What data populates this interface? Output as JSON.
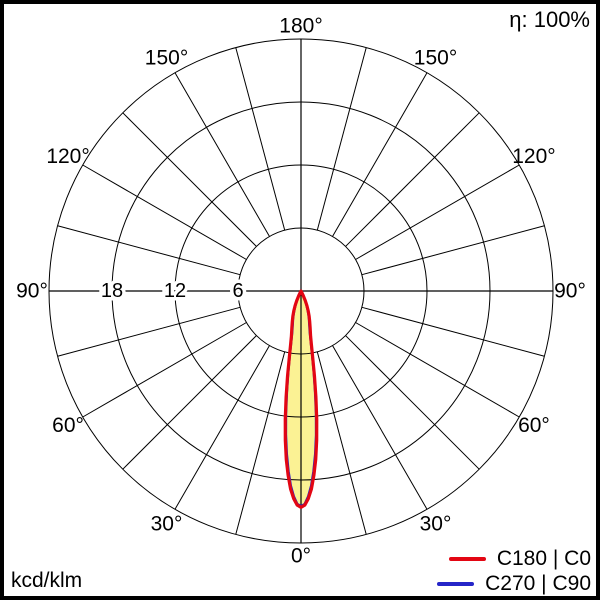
{
  "header": {
    "efficiency": "η: 100%"
  },
  "footer": {
    "unit_label": "kcd/klm"
  },
  "legend": {
    "items": [
      {
        "label": "C180 | C0",
        "color": "#e30613"
      },
      {
        "label": "C270 | C90",
        "color": "#2525c8"
      }
    ]
  },
  "chart_data": {
    "type": "polar",
    "subtype": "luminous-intensity-distribution",
    "units": "kcd/klm",
    "efficiency": "η: 100%",
    "grid": {
      "ring_values": [
        6,
        12,
        18,
        24
      ],
      "radial_tick_labels": [
        "18",
        "12",
        "6"
      ],
      "radial_tick_values": [
        18,
        12,
        6
      ],
      "angle_step_deg": 15,
      "angle_label_step_deg": 30,
      "angle_labels": [
        {
          "deg": 0,
          "text": "0°",
          "both_sides": false
        },
        {
          "deg": 30,
          "text": "30°",
          "both_sides": true
        },
        {
          "deg": 60,
          "text": "60°",
          "both_sides": true
        },
        {
          "deg": 90,
          "text": "90°",
          "both_sides": true
        },
        {
          "deg": 120,
          "text": "120°",
          "both_sides": true
        },
        {
          "deg": 150,
          "text": "150°",
          "both_sides": true
        },
        {
          "deg": 180,
          "text": "180°",
          "both_sides": false
        }
      ],
      "line_color": "#000000"
    },
    "max_intensity": 20.6,
    "gamma_deg": [
      0,
      1,
      2,
      3,
      4,
      5,
      6,
      7,
      8,
      9,
      10,
      11,
      12,
      14,
      16,
      18,
      20,
      22,
      24,
      26,
      28,
      30
    ],
    "series": [
      {
        "name": "C180 | C0",
        "color": "#e30613",
        "fill": "#fbf294",
        "intensity": [
          20.6,
          20.4,
          19.8,
          18.9,
          17.6,
          16.1,
          14.3,
          12.3,
          10.2,
          8.2,
          6.4,
          5.2,
          4.4,
          3.6,
          3.0,
          2.5,
          2.0,
          1.5,
          1.0,
          0.5,
          0.15,
          0
        ]
      },
      {
        "name": "C270 | C90",
        "color": "#2525c8",
        "fill": null,
        "intensity": [
          20.5,
          20.3,
          19.6,
          18.6,
          17.2,
          15.6,
          13.8,
          11.8,
          9.7,
          7.8,
          6.1,
          4.9,
          4.1,
          3.3,
          2.8,
          2.3,
          1.8,
          1.35,
          0.85,
          0.4,
          0.1,
          0
        ]
      }
    ]
  }
}
